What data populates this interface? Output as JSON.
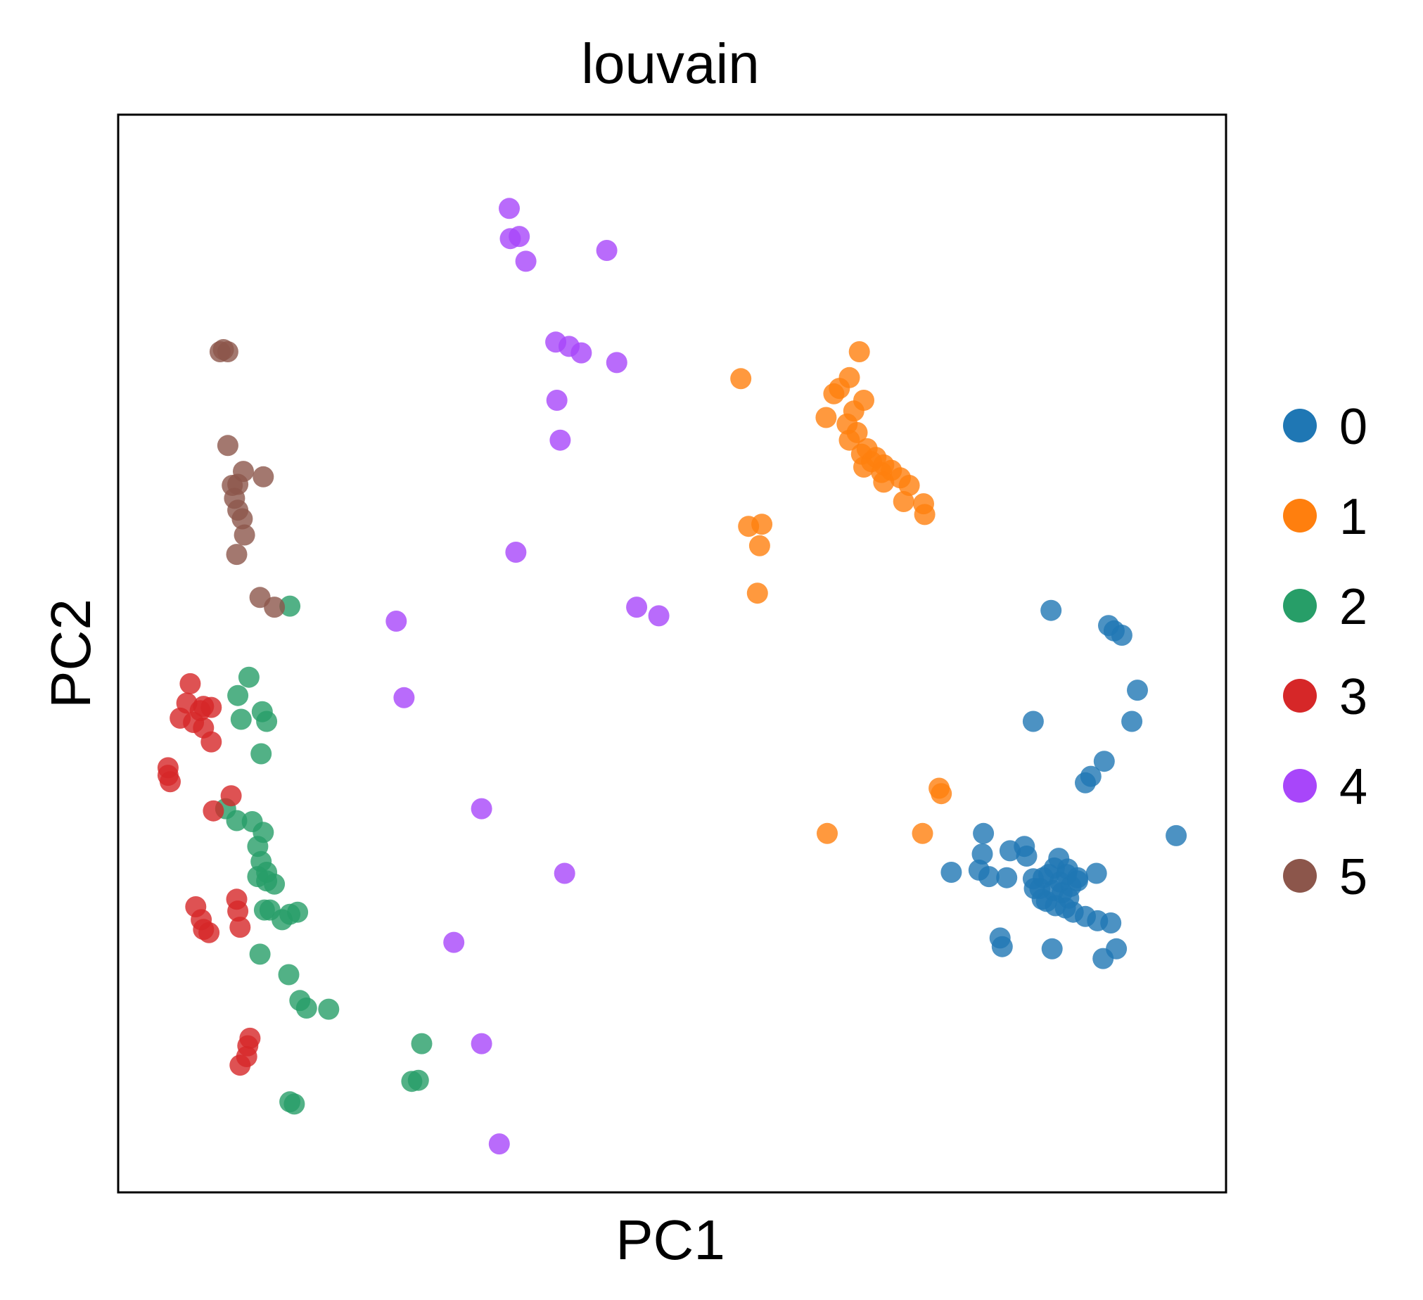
{
  "chart_data": {
    "type": "scatter",
    "title": "louvain",
    "xlabel": "PC1",
    "ylabel": "PC2",
    "xlim": [
      0,
      100
    ],
    "ylim": [
      0,
      100
    ],
    "grid": false,
    "ticks": false,
    "legend_position": "right",
    "series": [
      {
        "name": "0",
        "color": "#1f77b4",
        "points": [
          [
            84.2,
            54.0
          ],
          [
            89.4,
            52.6
          ],
          [
            90.6,
            51.7
          ],
          [
            89.9,
            52.1
          ],
          [
            92.0,
            46.6
          ],
          [
            82.6,
            43.7
          ],
          [
            91.5,
            43.7
          ],
          [
            87.8,
            38.6
          ],
          [
            87.3,
            38.0
          ],
          [
            89.0,
            40.0
          ],
          [
            95.5,
            33.1
          ],
          [
            78.1,
            33.3
          ],
          [
            81.8,
            32.1
          ],
          [
            82.0,
            31.2
          ],
          [
            78.0,
            31.4
          ],
          [
            80.5,
            31.7
          ],
          [
            77.7,
            29.9
          ],
          [
            80.2,
            29.2
          ],
          [
            78.6,
            29.3
          ],
          [
            75.2,
            29.7
          ],
          [
            88.3,
            29.6
          ],
          [
            84.5,
            30.1
          ],
          [
            85.7,
            30.0
          ],
          [
            84.0,
            29.5
          ],
          [
            83.5,
            29.2
          ],
          [
            85.0,
            28.8
          ],
          [
            86.0,
            28.4
          ],
          [
            85.2,
            27.8
          ],
          [
            84.4,
            28.0
          ],
          [
            83.8,
            27.0
          ],
          [
            84.6,
            26.6
          ],
          [
            85.5,
            26.4
          ],
          [
            86.2,
            26.0
          ],
          [
            87.3,
            25.6
          ],
          [
            88.4,
            25.2
          ],
          [
            89.6,
            25.0
          ],
          [
            83.2,
            28.2
          ],
          [
            82.6,
            29.1
          ],
          [
            79.6,
            23.6
          ],
          [
            79.8,
            22.8
          ],
          [
            84.3,
            22.6
          ],
          [
            88.9,
            21.7
          ],
          [
            90.1,
            22.6
          ],
          [
            86.6,
            29.2
          ],
          [
            85.6,
            29.5
          ],
          [
            84.9,
            31.0
          ],
          [
            83.4,
            27.2
          ],
          [
            86.6,
            28.9
          ],
          [
            85.8,
            27.3
          ],
          [
            82.7,
            28.2
          ]
        ]
      },
      {
        "name": "1",
        "color": "#ff7f0e",
        "points": [
          [
            66.9,
            78.0
          ],
          [
            64.6,
            74.1
          ],
          [
            67.3,
            73.5
          ],
          [
            66.0,
            75.6
          ],
          [
            65.1,
            74.6
          ],
          [
            66.4,
            72.5
          ],
          [
            65.8,
            71.3
          ],
          [
            63.9,
            71.9
          ],
          [
            66.7,
            70.5
          ],
          [
            67.6,
            69.0
          ],
          [
            68.4,
            68.2
          ],
          [
            67.1,
            68.5
          ],
          [
            66.0,
            69.8
          ],
          [
            68.9,
            66.8
          ],
          [
            69.1,
            65.9
          ],
          [
            70.6,
            66.3
          ],
          [
            69.8,
            67.0
          ],
          [
            71.4,
            65.6
          ],
          [
            69.1,
            67.5
          ],
          [
            68.0,
            67.8
          ],
          [
            67.3,
            67.3
          ],
          [
            70.9,
            64.1
          ],
          [
            72.8,
            62.9
          ],
          [
            72.7,
            63.9
          ],
          [
            56.2,
            75.5
          ],
          [
            56.9,
            61.8
          ],
          [
            58.1,
            62.0
          ],
          [
            57.9,
            60.0
          ],
          [
            57.7,
            55.6
          ],
          [
            64.0,
            33.3
          ],
          [
            74.1,
            37.5
          ],
          [
            74.3,
            37.0
          ],
          [
            72.6,
            33.3
          ]
        ]
      },
      {
        "name": "2",
        "color": "#279e68",
        "points": [
          [
            15.5,
            54.4
          ],
          [
            11.8,
            47.8
          ],
          [
            10.8,
            46.1
          ],
          [
            11.1,
            43.9
          ],
          [
            13.0,
            44.6
          ],
          [
            13.4,
            43.7
          ],
          [
            12.9,
            40.7
          ],
          [
            9.7,
            35.6
          ],
          [
            12.1,
            34.4
          ],
          [
            13.1,
            33.4
          ],
          [
            10.7,
            34.5
          ],
          [
            12.6,
            32.1
          ],
          [
            12.9,
            30.7
          ],
          [
            13.4,
            29.7
          ],
          [
            12.6,
            29.3
          ],
          [
            13.4,
            28.9
          ],
          [
            14.1,
            28.6
          ],
          [
            13.2,
            26.2
          ],
          [
            14.8,
            25.3
          ],
          [
            15.5,
            25.8
          ],
          [
            13.7,
            26.2
          ],
          [
            16.2,
            26.0
          ],
          [
            15.4,
            20.2
          ],
          [
            12.8,
            22.1
          ],
          [
            19.0,
            17.0
          ],
          [
            16.4,
            17.8
          ],
          [
            17.0,
            17.1
          ],
          [
            27.4,
            13.8
          ],
          [
            26.5,
            10.3
          ],
          [
            27.1,
            10.4
          ],
          [
            15.5,
            8.4
          ],
          [
            15.9,
            8.2
          ]
        ]
      },
      {
        "name": "3",
        "color": "#d62728",
        "points": [
          [
            6.5,
            47.2
          ],
          [
            6.2,
            45.4
          ],
          [
            7.4,
            44.7
          ],
          [
            8.4,
            45.0
          ],
          [
            5.6,
            44.0
          ],
          [
            6.8,
            43.6
          ],
          [
            7.7,
            43.1
          ],
          [
            7.7,
            45.1
          ],
          [
            8.4,
            41.8
          ],
          [
            4.5,
            39.4
          ],
          [
            4.5,
            38.7
          ],
          [
            4.7,
            38.1
          ],
          [
            10.2,
            36.8
          ],
          [
            8.6,
            35.4
          ],
          [
            10.7,
            27.2
          ],
          [
            7.0,
            26.5
          ],
          [
            7.5,
            25.3
          ],
          [
            7.7,
            24.4
          ],
          [
            8.2,
            24.1
          ],
          [
            11.0,
            24.6
          ],
          [
            10.8,
            26.1
          ],
          [
            11.9,
            14.3
          ],
          [
            11.7,
            13.6
          ],
          [
            11.6,
            12.6
          ],
          [
            11.0,
            11.8
          ]
        ]
      },
      {
        "name": "4",
        "color": "#a846fa",
        "points": [
          [
            35.3,
            91.3
          ],
          [
            35.4,
            88.5
          ],
          [
            36.2,
            88.7
          ],
          [
            36.8,
            86.4
          ],
          [
            44.1,
            87.4
          ],
          [
            39.5,
            78.9
          ],
          [
            40.7,
            78.5
          ],
          [
            41.8,
            77.9
          ],
          [
            45.0,
            77.0
          ],
          [
            39.6,
            73.5
          ],
          [
            39.9,
            69.8
          ],
          [
            35.9,
            59.4
          ],
          [
            46.8,
            54.3
          ],
          [
            48.8,
            53.5
          ],
          [
            25.1,
            53.0
          ],
          [
            25.8,
            45.9
          ],
          [
            32.8,
            35.6
          ],
          [
            40.3,
            29.6
          ],
          [
            30.3,
            23.2
          ],
          [
            32.8,
            13.8
          ],
          [
            34.4,
            4.5
          ]
        ]
      },
      {
        "name": "5",
        "color": "#8c564b",
        "points": [
          [
            9.2,
            78.0
          ],
          [
            9.9,
            78.0
          ],
          [
            9.5,
            78.2
          ],
          [
            9.9,
            69.3
          ],
          [
            11.3,
            66.9
          ],
          [
            13.1,
            66.4
          ],
          [
            10.3,
            65.6
          ],
          [
            10.8,
            65.7
          ],
          [
            10.5,
            64.4
          ],
          [
            10.8,
            63.3
          ],
          [
            11.2,
            62.5
          ],
          [
            11.4,
            61.0
          ],
          [
            10.7,
            59.2
          ],
          [
            12.8,
            55.2
          ],
          [
            14.1,
            54.3
          ]
        ]
      }
    ]
  }
}
